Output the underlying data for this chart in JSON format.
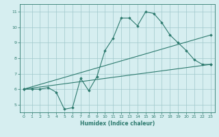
{
  "xlabel": "Humidex (Indice chaleur)",
  "ylabel": "",
  "bg_color": "#d6eef0",
  "line_color": "#2d7a6e",
  "grid_color": "#a0c8cc",
  "xlim": [
    -0.5,
    23.5
  ],
  "ylim": [
    4.5,
    11.5
  ],
  "xticks": [
    0,
    1,
    2,
    3,
    4,
    5,
    6,
    7,
    8,
    9,
    10,
    11,
    12,
    13,
    14,
    15,
    16,
    17,
    18,
    19,
    20,
    21,
    22,
    23
  ],
  "yticks": [
    5,
    6,
    7,
    8,
    9,
    10,
    11
  ],
  "line1_x": [
    0,
    1,
    2,
    3,
    4,
    5,
    6,
    7,
    8,
    9,
    10,
    11,
    12,
    13,
    14,
    15,
    16,
    17,
    18,
    19,
    20,
    21,
    22,
    23
  ],
  "line1_y": [
    6.0,
    6.0,
    6.0,
    6.1,
    5.8,
    4.7,
    4.8,
    6.7,
    5.9,
    6.8,
    8.5,
    9.3,
    10.6,
    10.6,
    10.1,
    11.0,
    10.9,
    10.3,
    9.5,
    9.0,
    8.5,
    7.9,
    7.6,
    7.6
  ],
  "line2_x": [
    0,
    23
  ],
  "line2_y": [
    6.0,
    7.6
  ],
  "line3_x": [
    0,
    23
  ],
  "line3_y": [
    6.0,
    9.5
  ]
}
